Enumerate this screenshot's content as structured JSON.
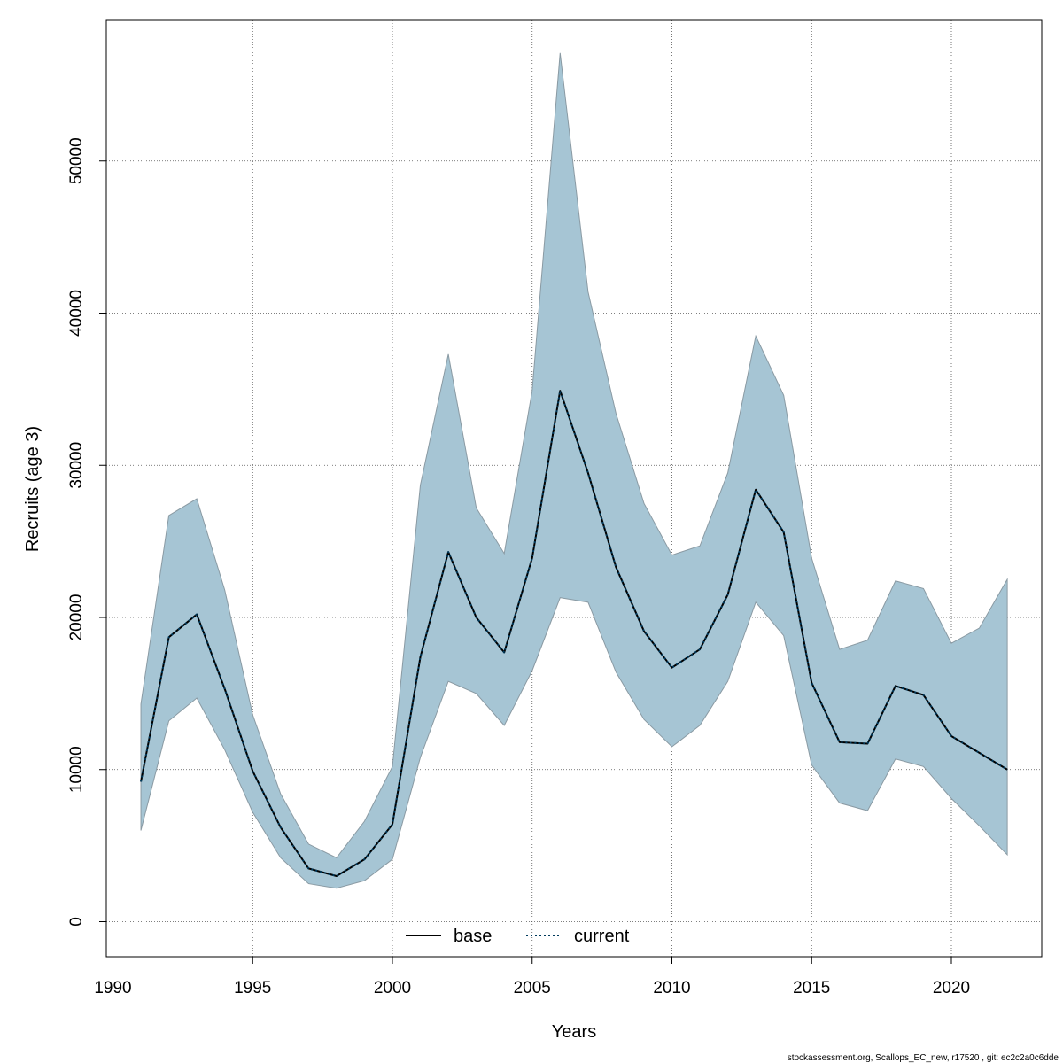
{
  "chart_data": {
    "type": "line",
    "title": "",
    "xlabel": "Years",
    "ylabel": "Recruits (age 3)",
    "xlim": [
      1990,
      2022
    ],
    "ylim": [
      0,
      57000
    ],
    "x_ticks": [
      1990,
      1995,
      2000,
      2005,
      2010,
      2015,
      2020
    ],
    "y_ticks": [
      0,
      10000,
      20000,
      30000,
      40000,
      50000
    ],
    "grid": true,
    "legend_position": "bottom-center",
    "colors": {
      "band_fill": "#a6c5d4",
      "band_stroke": "#8a9aa3",
      "current_line": "#003a5c",
      "base_line": "#000000",
      "grid": "#555555"
    },
    "x": [
      1991,
      1992,
      1993,
      1994,
      1995,
      1996,
      1997,
      1998,
      1999,
      2000,
      2001,
      2002,
      2003,
      2004,
      2005,
      2006,
      2007,
      2008,
      2009,
      2010,
      2011,
      2012,
      2013,
      2014,
      2015,
      2016,
      2017,
      2018,
      2019,
      2020,
      2021,
      2022
    ],
    "series": [
      {
        "name": "base",
        "style": "solid",
        "values": [
          9200,
          18700,
          20200,
          15300,
          9900,
          6200,
          3500,
          3000,
          4100,
          6400,
          17400,
          24300,
          20000,
          17700,
          23900,
          34900,
          29500,
          23300,
          19100,
          16700,
          17900,
          21500,
          28400,
          25600,
          15700,
          11800,
          11700,
          15500,
          14900,
          12200,
          11100,
          10000
        ]
      },
      {
        "name": "current",
        "style": "dotted",
        "values": [
          9200,
          18700,
          20200,
          15300,
          9900,
          6200,
          3500,
          3000,
          4100,
          6400,
          17400,
          24300,
          20000,
          17700,
          23900,
          34900,
          29500,
          23300,
          19100,
          16700,
          17900,
          21500,
          28400,
          25600,
          15700,
          11800,
          11700,
          15500,
          14900,
          12200,
          11100,
          10000
        ],
        "lower": [
          6000,
          13200,
          14700,
          11300,
          7200,
          4200,
          2500,
          2200,
          2700,
          4100,
          10800,
          15800,
          15000,
          12900,
          16500,
          21300,
          21000,
          16400,
          13300,
          11500,
          12900,
          15800,
          21000,
          18800,
          10300,
          7800,
          7300,
          10700,
          10200,
          8100,
          6300,
          4400
        ],
        "upper": [
          14300,
          26700,
          27800,
          21800,
          13600,
          8400,
          5100,
          4200,
          6600,
          10200,
          28700,
          37300,
          27200,
          24200,
          34900,
          57100,
          41400,
          33400,
          27500,
          24100,
          24700,
          29500,
          38500,
          34600,
          23900,
          17900,
          18500,
          22400,
          21900,
          18300,
          19300,
          22500
        ]
      }
    ]
  },
  "legend": {
    "items": [
      {
        "label": "base"
      },
      {
        "label": "current"
      }
    ]
  },
  "footer": {
    "text": "stockassessment.org, Scallops_EC_new, r17520 , git: ec2c2a0c6dde"
  }
}
